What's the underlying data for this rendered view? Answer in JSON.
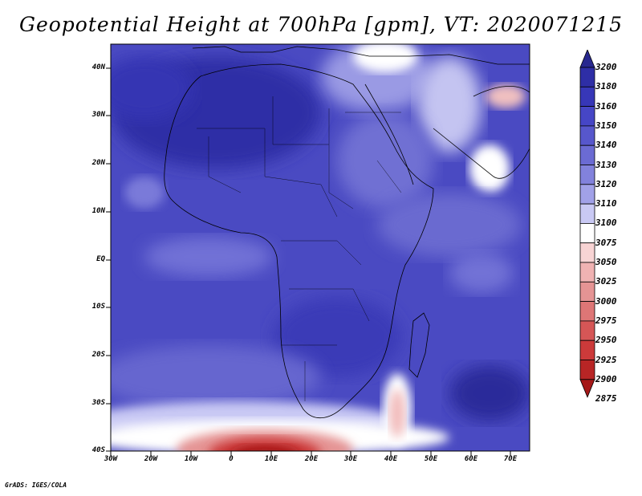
{
  "title": "Geopotential Height at 700hPa [gpm], VT: 2020071215",
  "credit": "GrADS: IGES/COLA",
  "lat_labels": [
    "40N",
    "30N",
    "20N",
    "10N",
    "EQ",
    "10S",
    "20S",
    "30S",
    "40S"
  ],
  "lon_labels": [
    "30W",
    "20W",
    "10W",
    "0",
    "10E",
    "20E",
    "30E",
    "40E",
    "50E",
    "60E",
    "70E"
  ],
  "colorbar": {
    "levels": [
      "3200",
      "3180",
      "3160",
      "3150",
      "3140",
      "3130",
      "3120",
      "3110",
      "3100",
      "3075",
      "3050",
      "3025",
      "3000",
      "2975",
      "2950",
      "2925",
      "2900",
      "2875"
    ],
    "colors": [
      "#28288f",
      "#2e2ea6",
      "#3737b8",
      "#4646c6",
      "#5757cc",
      "#6b6bd3",
      "#8282dc",
      "#a1a1e8",
      "#c9c9f4",
      "#ffffff",
      "#f8d4d4",
      "#f0b3b3",
      "#e59494",
      "#de7676",
      "#d55656",
      "#cc3a3a",
      "#b82525",
      "#a51818"
    ]
  },
  "chart_data": {
    "type": "heatmap",
    "variable": "Geopotential Height at 700hPa [gpm]",
    "valid_time": "2020071215",
    "lon_range": [
      -30,
      75
    ],
    "lat_range": [
      -40,
      45
    ]
  }
}
